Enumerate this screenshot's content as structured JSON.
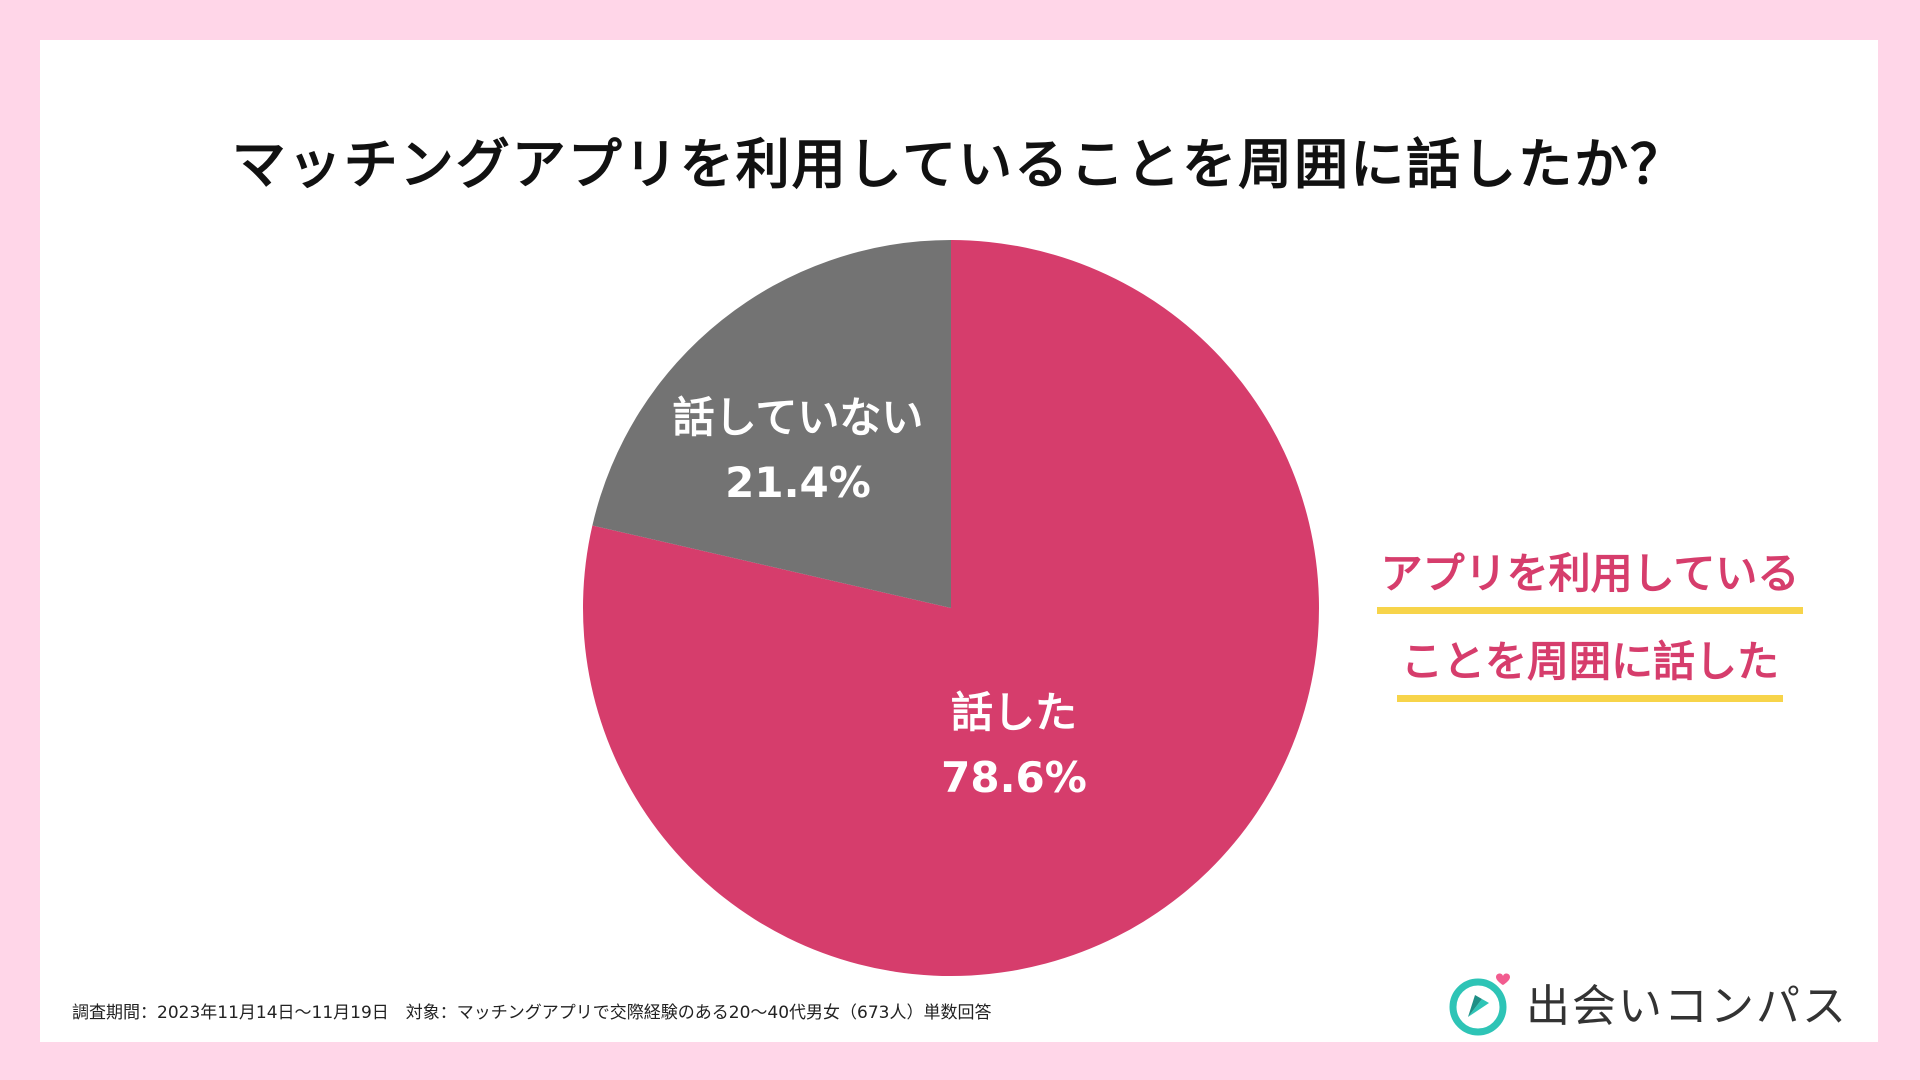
{
  "title": "マッチングアプリを利用していることを周囲に話したか？",
  "chart_data": {
    "type": "pie",
    "title": "マッチングアプリを利用していることを周囲に話したか？",
    "slices": [
      {
        "label": "話した",
        "value": 78.6,
        "value_label": "78.6%",
        "color": "#d63d6c"
      },
      {
        "label": "話していない",
        "value": 21.4,
        "value_label": "21.4%",
        "color": "#737373"
      }
    ],
    "start": "12 o'clock, clockwise",
    "legend": "none"
  },
  "callout": {
    "line1": "アプリを利用している",
    "line2": "ことを周囲に話した",
    "color": "#d63d6c",
    "underline_color": "#f7d44a"
  },
  "footnote": "調査期間：2023年11月14日〜11月19日　対象：マッチングアプリで交際経験のある20〜40代男女（673人）単数回答",
  "logo": {
    "text": "出会いコンパス",
    "icon": "compass-heart-icon",
    "icon_color": "#2ec4b6",
    "heart_color": "#f25c8f"
  },
  "colors": {
    "background": "#ffd6e8",
    "card": "#ffffff"
  }
}
